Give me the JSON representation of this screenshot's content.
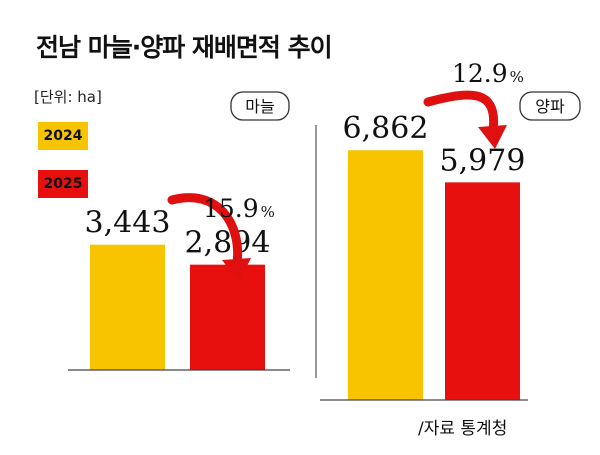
{
  "title": "전남 마늘·양파 재배면적 추이",
  "unit": "[단위: ha]",
  "source": "/자료 통계청",
  "colors": {
    "2024": "#F8C400",
    "2025": "#E8100F",
    "arrow": "#E01010"
  },
  "legend": [
    {
      "label": "2024",
      "color": "#F8C400"
    },
    {
      "label": "2025",
      "color": "#E8100F"
    }
  ],
  "chart_data": [
    {
      "type": "bar",
      "panel": "마늘",
      "categories": [
        "2024",
        "2025"
      ],
      "values": [
        3443,
        2894
      ],
      "value_labels": [
        "3,443",
        "2,894"
      ],
      "change_label": "15.9",
      "change_unit": "%"
    },
    {
      "type": "bar",
      "panel": "양파",
      "categories": [
        "2024",
        "2025"
      ],
      "values": [
        6862,
        5979
      ],
      "value_labels": [
        "6,862",
        "5,979"
      ],
      "change_label": "12.9",
      "change_unit": "%"
    }
  ]
}
